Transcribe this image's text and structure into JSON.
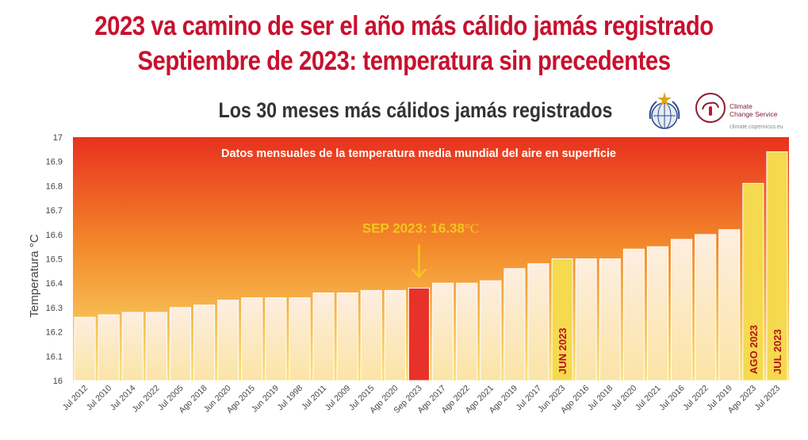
{
  "header": {
    "line1": "2023 va camino de ser el año más cálido jamás registrado",
    "line2": "Septiembre de 2023: temperatura sin precedentes"
  },
  "logos": {
    "c3s_line1": "Climate",
    "c3s_line2": "Change Service",
    "c3s_url": "climate.copernicus.eu"
  },
  "colors": {
    "title_red": "#c8102e",
    "highlight_bar": "#e8312a",
    "yellow_bar": "#f5d94e",
    "annotation_yellow": "#f2c81e"
  },
  "chart_data": {
    "type": "bar",
    "title": "Los 30 meses más cálidos jamás registrados",
    "subtitle": "Datos mensuales de la temperatura media mundial del aire en superficie",
    "ylabel": "Temperatura °C",
    "ylim": [
      16,
      17
    ],
    "yticks": [
      "16",
      "16.1",
      "16.2",
      "16.3",
      "16.4",
      "16.5",
      "16.6",
      "16.7",
      "16.8",
      "16.9",
      "17"
    ],
    "categories": [
      "Jul 2012",
      "Jul 2010",
      "Jul 2014",
      "Jun 2022",
      "Jul 2005",
      "Ago 2018",
      "Jun 2020",
      "Ago 2015",
      "Jun 2019",
      "Jul 1998",
      "Jul 2011",
      "Jul 2009",
      "Jul 2015",
      "Ago 2020",
      "Sep 2023",
      "Ago 2017",
      "Ago 2022",
      "Ago 2021",
      "Ago 2019",
      "Jul 2017",
      "Jun 2023",
      "Ago 2016",
      "Jul 2018",
      "Jul 2020",
      "Jul 2021",
      "Jul 2016",
      "Jul 2022",
      "Jul 2019",
      "Ago 2023",
      "Jul 2023"
    ],
    "values": [
      16.26,
      16.27,
      16.28,
      16.28,
      16.3,
      16.31,
      16.33,
      16.34,
      16.34,
      16.34,
      16.36,
      16.36,
      16.37,
      16.37,
      16.38,
      16.4,
      16.4,
      16.41,
      16.46,
      16.48,
      16.5,
      16.5,
      16.5,
      16.54,
      16.55,
      16.58,
      16.6,
      16.62,
      16.81,
      16.94
    ],
    "highlight": {
      "Sep 2023": "red",
      "Jun 2023": "yellow",
      "Ago 2023": "yellow",
      "Jul 2023": "yellow"
    },
    "bar_labels": {
      "Jun 2023": "JUN 2023",
      "Ago 2023": "AGO 2023",
      "Jul 2023": "JUL 2023"
    },
    "annotation": {
      "text": "SEP 2023: 16.38",
      "unit": "°C",
      "target": "Sep 2023"
    },
    "grid": false
  }
}
